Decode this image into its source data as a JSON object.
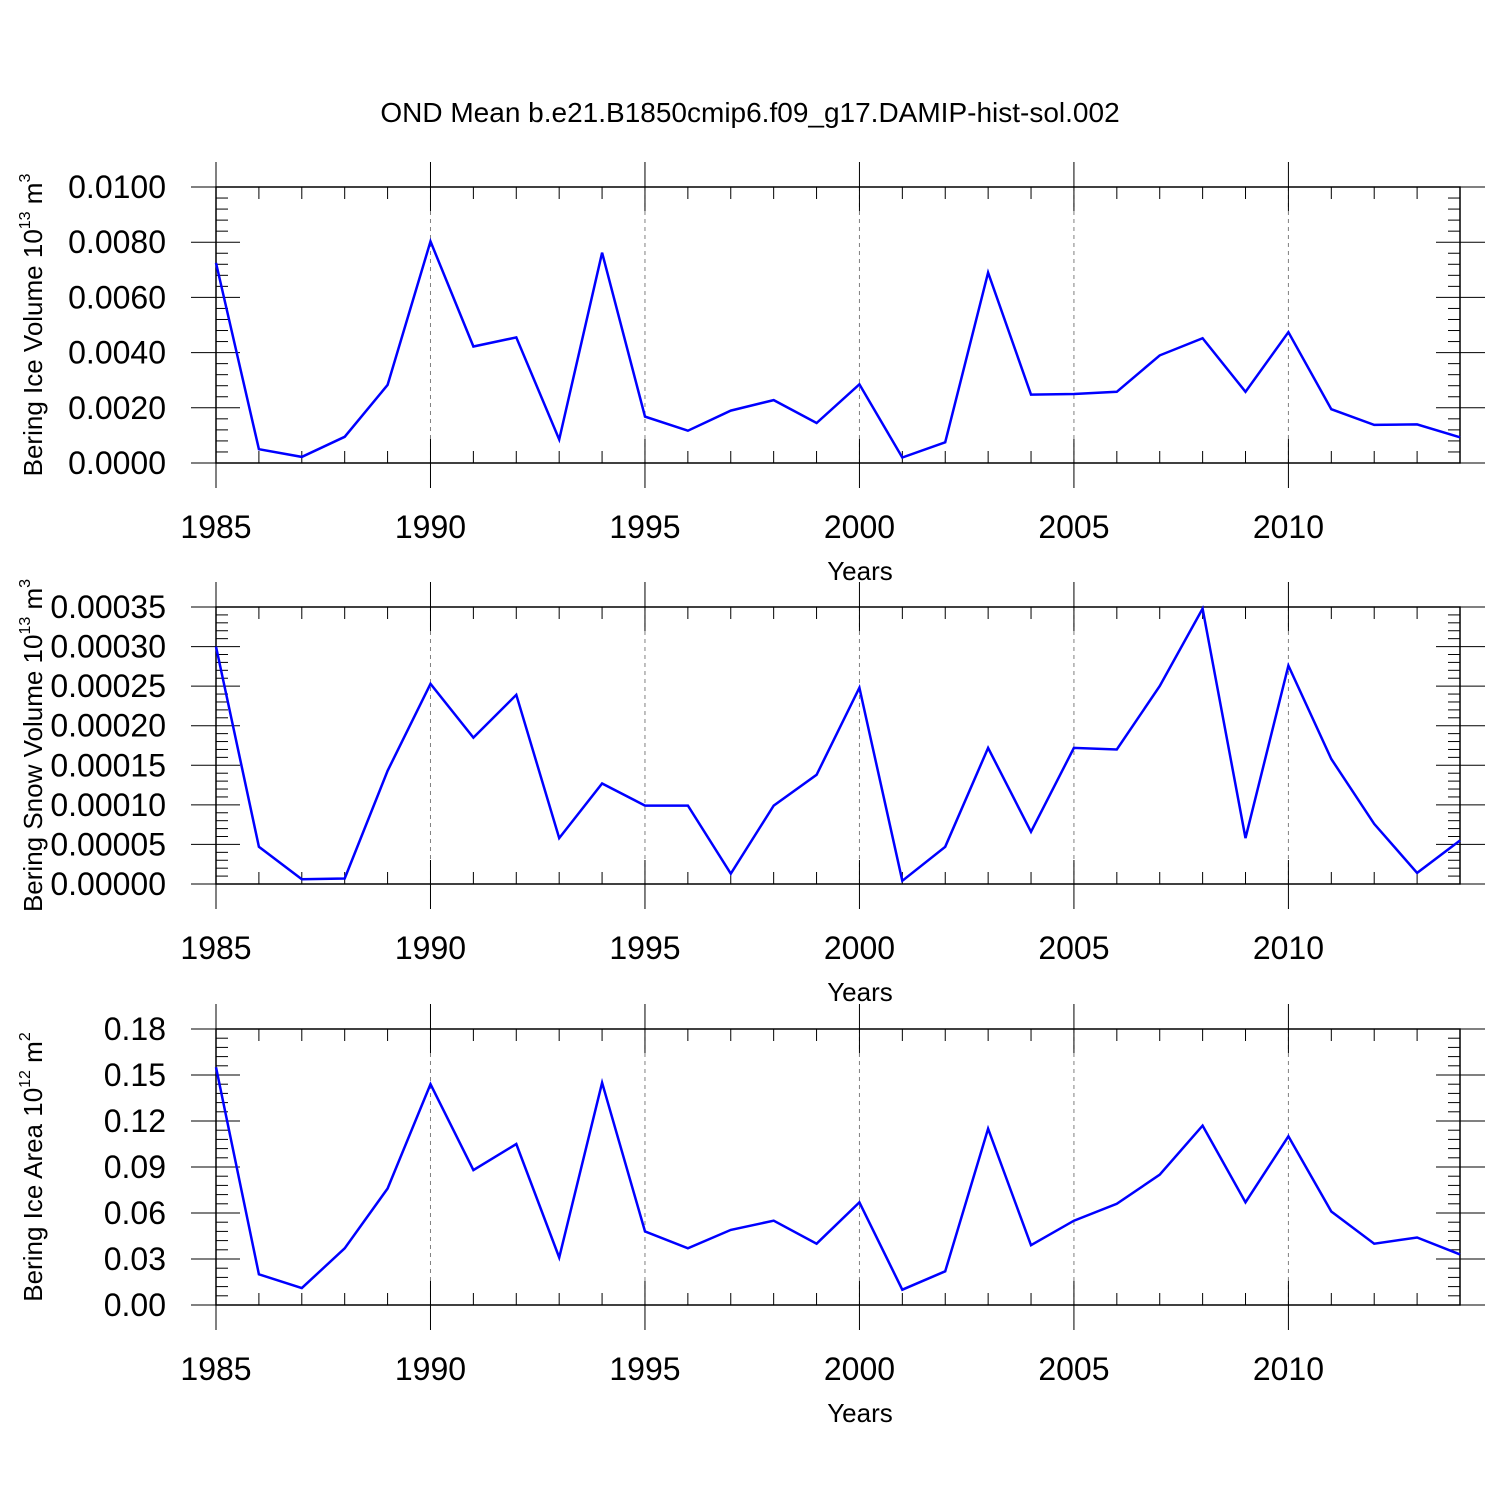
{
  "page_title": "OND Mean b.e21.B1850cmip6.f09_g17.DAMIP-hist-sol.002",
  "colors": {
    "line": "#0000ff",
    "axis": "#000000",
    "grid": "#808080"
  },
  "chart_data": [
    {
      "type": "line",
      "title": "OND Mean b.e21.B1850cmip6.f09_g17.DAMIP-hist-sol.002",
      "xlabel": "Years",
      "ylabel_main": "Bering Ice Volume 10",
      "ylabel_sup": "13",
      "ylabel_unit": " m",
      "ylabel_unit_sup": "3",
      "xlim": [
        1985,
        2014
      ],
      "ylim": [
        0,
        0.01
      ],
      "xticks": [
        "1985",
        "1990",
        "1995",
        "2000",
        "2005",
        "2010"
      ],
      "yticks": [
        "0.0000",
        "0.0020",
        "0.0040",
        "0.0060",
        "0.0080",
        "0.0100"
      ],
      "grid": "vertical dashed at major x ticks",
      "x": [
        1985,
        1986,
        1987,
        1988,
        1989,
        1990,
        1991,
        1992,
        1993,
        1994,
        1995,
        1996,
        1997,
        1998,
        1999,
        2000,
        2001,
        2002,
        2003,
        2004,
        2005,
        2006,
        2007,
        2008,
        2009,
        2010,
        2011,
        2012,
        2013,
        2014
      ],
      "values": [
        0.00725,
        0.0005,
        0.00022,
        0.00095,
        0.00283,
        0.00803,
        0.00422,
        0.00455,
        0.00085,
        0.00762,
        0.00168,
        0.00117,
        0.0019,
        0.00228,
        0.00145,
        0.00285,
        0.0002,
        0.00075,
        0.0069,
        0.00248,
        0.0025,
        0.00258,
        0.0039,
        0.00452,
        0.00258,
        0.00474,
        0.00195,
        0.00138,
        0.0014,
        0.00093
      ]
    },
    {
      "type": "line",
      "title": "",
      "xlabel": "Years",
      "ylabel_main": "Bering Snow Volume 10",
      "ylabel_sup": "13",
      "ylabel_unit": " m",
      "ylabel_unit_sup": "3",
      "xlim": [
        1985,
        2014
      ],
      "ylim": [
        0,
        0.00035
      ],
      "xticks": [
        "1985",
        "1990",
        "1995",
        "2000",
        "2005",
        "2010"
      ],
      "yticks": [
        "0.00000",
        "0.00005",
        "0.00010",
        "0.00015",
        "0.00020",
        "0.00025",
        "0.00030",
        "0.00035"
      ],
      "grid": "vertical dashed at major x ticks",
      "x": [
        1985,
        1986,
        1987,
        1988,
        1989,
        1990,
        1991,
        1992,
        1993,
        1994,
        1995,
        1996,
        1997,
        1998,
        1999,
        2000,
        2001,
        2002,
        2003,
        2004,
        2005,
        2006,
        2007,
        2008,
        2009,
        2010,
        2011,
        2012,
        2013,
        2014
      ],
      "values": [
        0.0003,
        4.7e-05,
        6e-06,
        7e-06,
        0.000143,
        0.000253,
        0.000185,
        0.000239,
        5.8e-05,
        0.000127,
        9.9e-05,
        9.9e-05,
        1.3e-05,
        9.9e-05,
        0.000138,
        0.000248,
        4e-06,
        4.7e-05,
        0.000172,
        6.6e-05,
        0.000172,
        0.00017,
        0.00025,
        0.000348,
        5.8e-05,
        0.000276,
        0.000158,
        7.6e-05,
        1.4e-05,
        5.5e-05
      ]
    },
    {
      "type": "line",
      "title": "",
      "xlabel": "Years",
      "ylabel_main": "Bering Ice Area 10",
      "ylabel_sup": "12",
      "ylabel_unit": " m",
      "ylabel_unit_sup": "2",
      "xlim": [
        1985,
        2014
      ],
      "ylim": [
        0,
        0.18
      ],
      "xticks": [
        "1985",
        "1990",
        "1995",
        "2000",
        "2005",
        "2010"
      ],
      "yticks": [
        "0.00",
        "0.03",
        "0.06",
        "0.09",
        "0.12",
        "0.15",
        "0.18"
      ],
      "grid": "vertical dashed at major x ticks",
      "x": [
        1985,
        1986,
        1987,
        1988,
        1989,
        1990,
        1991,
        1992,
        1993,
        1994,
        1995,
        1996,
        1997,
        1998,
        1999,
        2000,
        2001,
        2002,
        2003,
        2004,
        2005,
        2006,
        2007,
        2008,
        2009,
        2010,
        2011,
        2012,
        2013,
        2014
      ],
      "values": [
        0.155,
        0.02,
        0.011,
        0.037,
        0.076,
        0.144,
        0.088,
        0.105,
        0.031,
        0.145,
        0.048,
        0.037,
        0.049,
        0.055,
        0.04,
        0.067,
        0.01,
        0.022,
        0.115,
        0.039,
        0.055,
        0.066,
        0.085,
        0.117,
        0.067,
        0.11,
        0.061,
        0.04,
        0.044,
        0.033
      ]
    }
  ]
}
